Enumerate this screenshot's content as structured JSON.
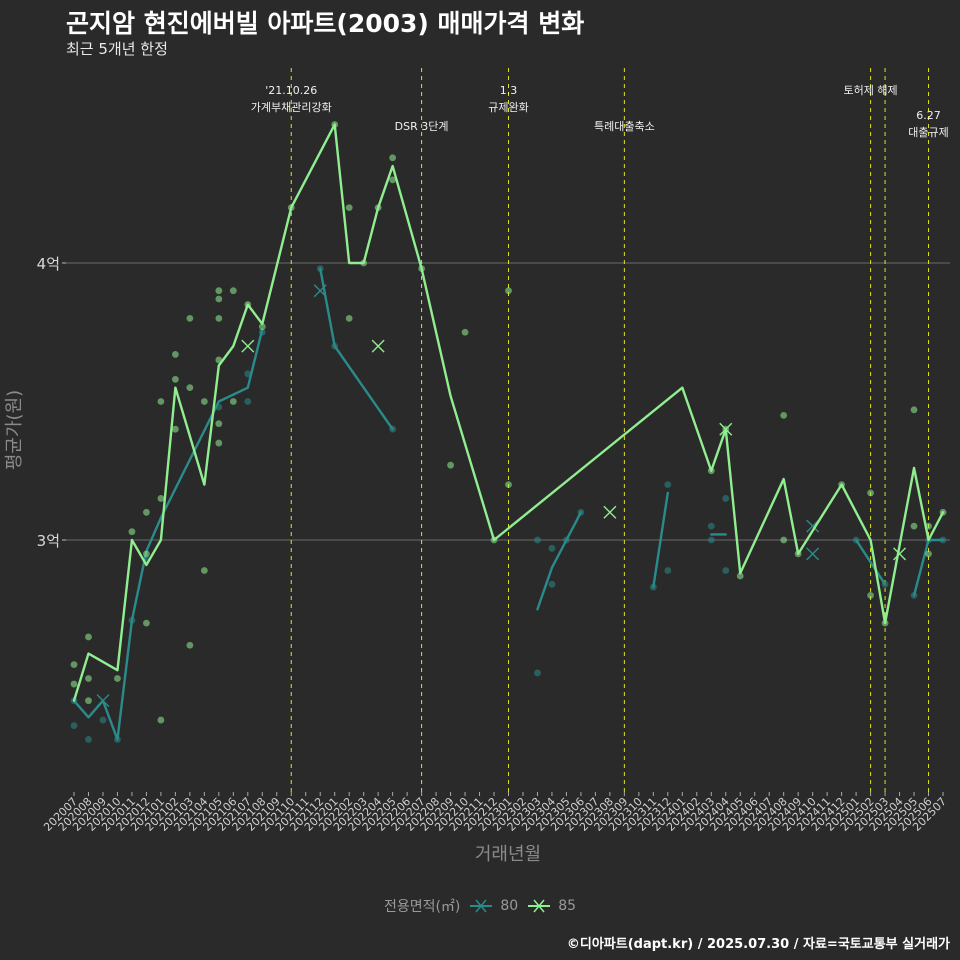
{
  "title": "곤지암 현진에버빌 아파트(2003) 매매가격 변화",
  "subtitle": "최근 5개년 한정",
  "caption": "©디아파트(dapt.kr) / 2025.07.30 / 자료=국토교통부 실거래가",
  "chart_data": {
    "type": "line",
    "xlabel": "거래년월",
    "ylabel": "평균가(원)",
    "ylim": [
      2.15,
      4.95
    ],
    "yticks": [
      {
        "value": 3,
        "label": "3억"
      },
      {
        "value": 4,
        "label": "4억"
      }
    ],
    "grid": true,
    "legend_title": "전용면적(㎡)",
    "legend_position": "bottom",
    "x": [
      "202007",
      "202008",
      "202009",
      "202010",
      "202011",
      "202012",
      "202101",
      "202102",
      "202103",
      "202104",
      "202105",
      "202106",
      "202107",
      "202108",
      "202109",
      "202110",
      "202111",
      "202112",
      "202201",
      "202202",
      "202203",
      "202204",
      "202205",
      "202206",
      "202207",
      "202208",
      "202209",
      "202210",
      "202211",
      "202212",
      "202301",
      "202302",
      "202303",
      "202304",
      "202305",
      "202306",
      "202307",
      "202308",
      "202309",
      "202310",
      "202311",
      "202312",
      "202401",
      "202402",
      "202403",
      "202404",
      "202405",
      "202406",
      "202407",
      "202408",
      "202409",
      "202410",
      "202411",
      "202412",
      "202501",
      "202502",
      "202503",
      "202504",
      "202505",
      "202506",
      "202507"
    ],
    "series": [
      {
        "name": "80",
        "color": "#2a8b8b",
        "line_segments": [
          [
            [
              "202007",
              2.42
            ],
            [
              "202008",
              2.36
            ],
            [
              "202009",
              2.42
            ],
            [
              "202010",
              2.28
            ],
            [
              "202011",
              2.71
            ],
            [
              "202012",
              2.96
            ],
            [
              "202101",
              3.08
            ],
            [
              "202105",
              3.5
            ],
            [
              "202107",
              3.55
            ],
            [
              "202108",
              3.76
            ]
          ],
          [
            [
              "202112",
              3.98
            ],
            [
              "202201",
              3.7
            ],
            [
              "202205",
              3.4
            ]
          ],
          [
            [
              "202303",
              2.75
            ],
            [
              "202304",
              2.9
            ],
            [
              "202305",
              3.0
            ],
            [
              "202306",
              3.1
            ]
          ],
          [
            [
              "202311",
              2.83
            ],
            [
              "202312",
              3.17
            ]
          ],
          [
            [
              "202403",
              3.02
            ],
            [
              "202404",
              3.02
            ]
          ],
          [
            [
              "202501",
              3.0
            ],
            [
              "202503",
              2.84
            ]
          ],
          [
            [
              "202505",
              2.8
            ],
            [
              "202506",
              3.0
            ],
            [
              "202507",
              3.0
            ]
          ]
        ],
        "points": [
          [
            "202007",
            2.42
          ],
          [
            "202007",
            2.33
          ],
          [
            "202008",
            2.28
          ],
          [
            "202009",
            2.35
          ],
          [
            "202010",
            2.28
          ],
          [
            "202011",
            2.71
          ],
          [
            "202012",
            2.93
          ],
          [
            "202105",
            3.48
          ],
          [
            "202107",
            3.5
          ],
          [
            "202107",
            3.6
          ],
          [
            "202108",
            3.75
          ],
          [
            "202112",
            3.98
          ],
          [
            "202201",
            3.7
          ],
          [
            "202205",
            3.4
          ],
          [
            "202303",
            2.52
          ],
          [
            "202303",
            3.0
          ],
          [
            "202304",
            2.84
          ],
          [
            "202304",
            2.97
          ],
          [
            "202305",
            3.0
          ],
          [
            "202306",
            3.1
          ],
          [
            "202311",
            2.83
          ],
          [
            "202312",
            2.89
          ],
          [
            "202312",
            3.2
          ],
          [
            "202403",
            3.0
          ],
          [
            "202403",
            3.05
          ],
          [
            "202404",
            2.89
          ],
          [
            "202404",
            3.15
          ],
          [
            "202501",
            3.0
          ],
          [
            "202503",
            2.84
          ],
          [
            "202505",
            2.8
          ],
          [
            "202506",
            3.0
          ],
          [
            "202507",
            3.0
          ]
        ],
        "markers_x": [
          [
            "202009",
            2.42
          ],
          [
            "202112",
            3.9
          ],
          [
            "202410",
            3.05
          ],
          [
            "202410",
            2.95
          ]
        ]
      },
      {
        "name": "85",
        "color": "#90ee90",
        "line_segments": [
          [
            [
              "202007",
              2.42
            ],
            [
              "202008",
              2.59
            ],
            [
              "202010",
              2.53
            ],
            [
              "202011",
              3.0
            ],
            [
              "202012",
              2.91
            ],
            [
              "202101",
              3.0
            ],
            [
              "202102",
              3.55
            ],
            [
              "202104",
              3.2
            ],
            [
              "202105",
              3.63
            ],
            [
              "202106",
              3.7
            ],
            [
              "202107",
              3.85
            ],
            [
              "202108",
              3.78
            ],
            [
              "202110",
              4.2
            ],
            [
              "202201",
              4.5
            ],
            [
              "202202",
              4.0
            ],
            [
              "202203",
              4.0
            ],
            [
              "202204",
              4.2
            ],
            [
              "202205",
              4.35
            ],
            [
              "202207",
              3.98
            ],
            [
              "202209",
              3.52
            ],
            [
              "202212",
              3.0
            ],
            [
              "202401",
              3.55
            ],
            [
              "202403",
              3.25
            ],
            [
              "202404",
              3.4
            ],
            [
              "202405",
              2.88
            ],
            [
              "202408",
              3.22
            ],
            [
              "202409",
              2.95
            ],
            [
              "202412",
              3.2
            ],
            [
              "202502",
              3.0
            ],
            [
              "202503",
              2.7
            ],
            [
              "202505",
              3.26
            ],
            [
              "202506",
              3.0
            ],
            [
              "202507",
              3.1
            ]
          ]
        ],
        "points": [
          [
            "202007",
            2.48
          ],
          [
            "202007",
            2.55
          ],
          [
            "202008",
            2.42
          ],
          [
            "202008",
            2.5
          ],
          [
            "202008",
            2.65
          ],
          [
            "202010",
            2.5
          ],
          [
            "202011",
            3.03
          ],
          [
            "202012",
            2.7
          ],
          [
            "202012",
            2.95
          ],
          [
            "202012",
            3.1
          ],
          [
            "202101",
            2.35
          ],
          [
            "202101",
            3.15
          ],
          [
            "202101",
            3.5
          ],
          [
            "202102",
            3.4
          ],
          [
            "202102",
            3.58
          ],
          [
            "202102",
            3.67
          ],
          [
            "202103",
            2.62
          ],
          [
            "202103",
            3.55
          ],
          [
            "202103",
            3.8
          ],
          [
            "202104",
            2.89
          ],
          [
            "202104",
            3.5
          ],
          [
            "202105",
            3.35
          ],
          [
            "202105",
            3.42
          ],
          [
            "202105",
            3.65
          ],
          [
            "202105",
            3.8
          ],
          [
            "202105",
            3.87
          ],
          [
            "202105",
            3.9
          ],
          [
            "202106",
            3.5
          ],
          [
            "202106",
            3.9
          ],
          [
            "202107",
            3.85
          ],
          [
            "202108",
            3.77
          ],
          [
            "202110",
            4.2
          ],
          [
            "202201",
            4.5
          ],
          [
            "202202",
            4.2
          ],
          [
            "202202",
            3.8
          ],
          [
            "202203",
            4.0
          ],
          [
            "202204",
            4.2
          ],
          [
            "202205",
            4.3
          ],
          [
            "202205",
            4.38
          ],
          [
            "202207",
            3.98
          ],
          [
            "202209",
            3.27
          ],
          [
            "202210",
            3.75
          ],
          [
            "202212",
            3.0
          ],
          [
            "202301",
            3.9
          ],
          [
            "202301",
            3.2
          ],
          [
            "202403",
            3.25
          ],
          [
            "202404",
            3.4
          ],
          [
            "202405",
            2.87
          ],
          [
            "202408",
            3.0
          ],
          [
            "202408",
            3.45
          ],
          [
            "202409",
            2.95
          ],
          [
            "202412",
            3.2
          ],
          [
            "202502",
            2.8
          ],
          [
            "202502",
            3.17
          ],
          [
            "202503",
            2.7
          ],
          [
            "202505",
            3.05
          ],
          [
            "202505",
            3.47
          ],
          [
            "202506",
            2.95
          ],
          [
            "202506",
            3.05
          ],
          [
            "202507",
            3.1
          ]
        ],
        "markers_x": [
          [
            "202107",
            3.7
          ],
          [
            "202204",
            3.7
          ],
          [
            "202308",
            3.1
          ],
          [
            "202404",
            3.4
          ],
          [
            "202504",
            2.95
          ]
        ]
      }
    ],
    "events": [
      {
        "x": "202110",
        "label": "'21.10.26\n가계부채관리강화",
        "level": 0
      },
      {
        "x": "202207",
        "label": "DSR 3단계",
        "level": 1
      },
      {
        "x": "202301",
        "label": "1.3\n규제완화",
        "level": 0
      },
      {
        "x": "202309",
        "label": "특례대출축소",
        "level": 1
      },
      {
        "x": "202502",
        "label": "토허제 해제",
        "level": 0
      },
      {
        "x": "202503",
        "label": "",
        "level": 0
      },
      {
        "x": "202506",
        "label": "6.27\n대출규제",
        "level": 2
      }
    ]
  }
}
